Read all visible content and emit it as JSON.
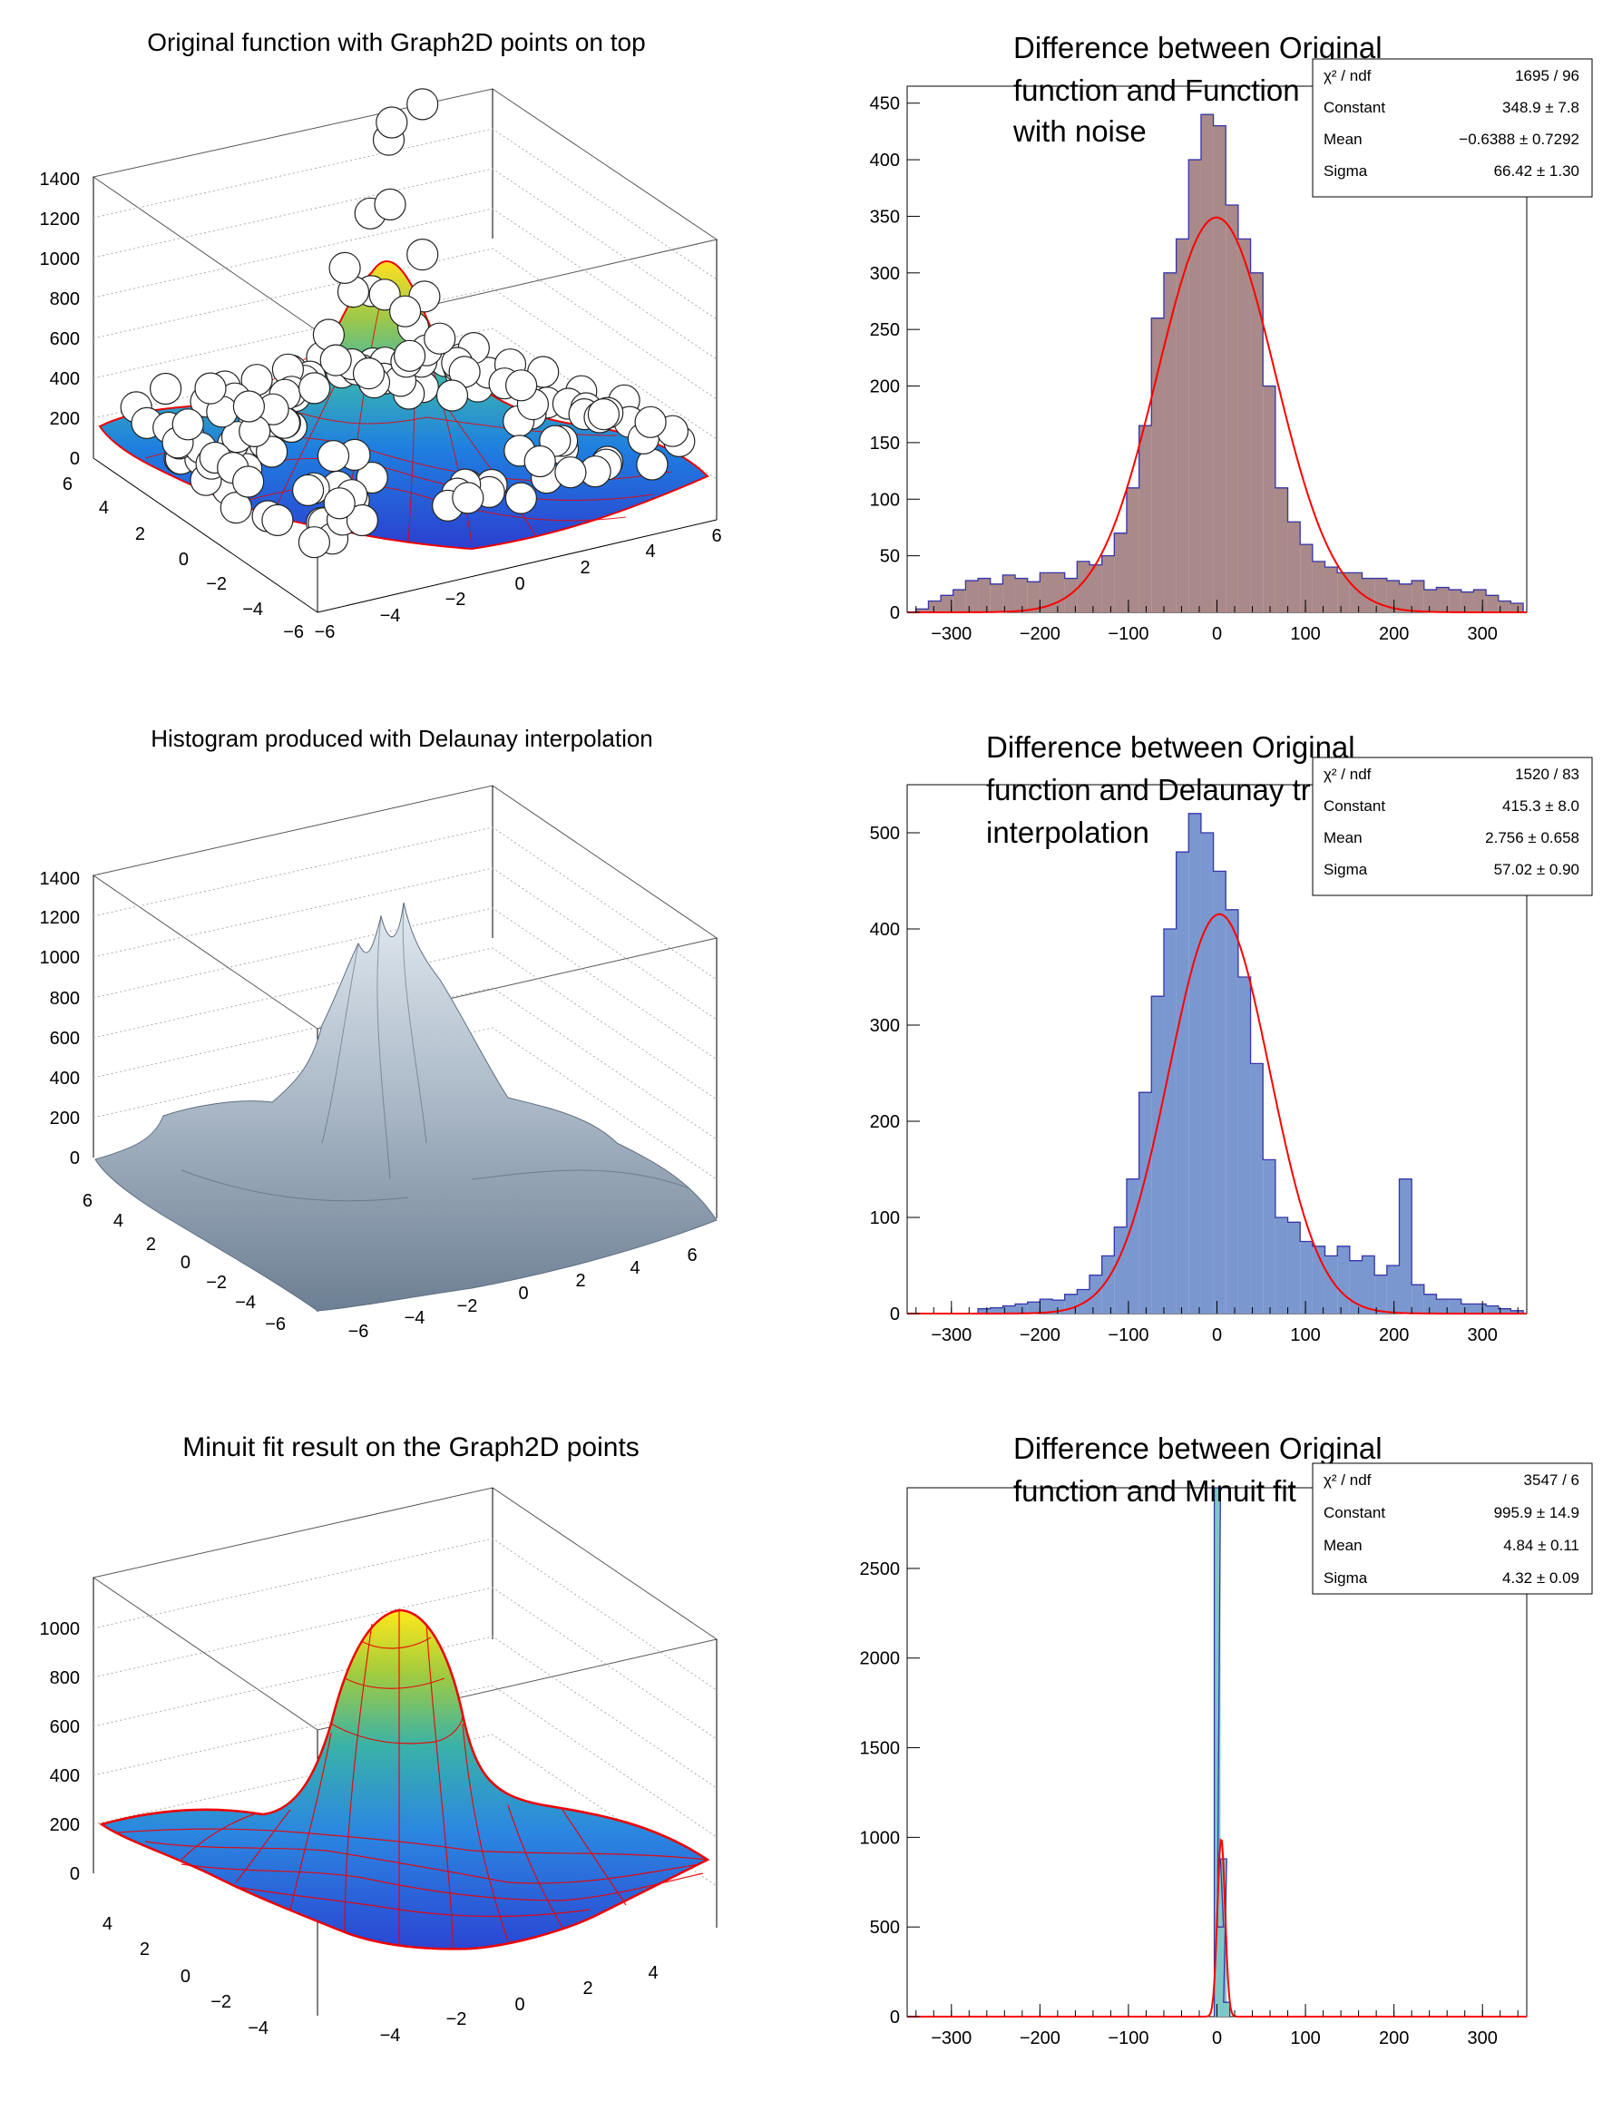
{
  "chart_data": [
    {
      "id": "p1",
      "type": "surface3d",
      "title": "Original function with Graph2D points on top",
      "zticks": [
        "0",
        "200",
        "400",
        "600",
        "800",
        "1000",
        "1200",
        "1400"
      ],
      "xticks": [
        "−6",
        "−4",
        "−2",
        "0",
        "2",
        "4",
        "6"
      ],
      "yticks": [
        "6",
        "4",
        "2",
        "0",
        "−2",
        "−4",
        "−6"
      ],
      "zlim": [
        0,
        1400
      ],
      "style": "colored surface with red mesh and white graph points",
      "n_points": 150
    },
    {
      "id": "p2",
      "type": "bar",
      "title": "Difference between Original function and Function with noise",
      "title_lines": [
        "Difference between Original",
        "function and Function",
        "with noise"
      ],
      "xlim": [
        -350,
        350
      ],
      "ylim": [
        0,
        465
      ],
      "xticks": [
        "−300",
        "−200",
        "−100",
        "0",
        "100",
        "200",
        "300"
      ],
      "xtick_values": [
        -300,
        -200,
        -100,
        0,
        100,
        200,
        300
      ],
      "yticks": [
        "0",
        "50",
        "100",
        "150",
        "200",
        "250",
        "300",
        "350",
        "400",
        "450"
      ],
      "ytick_values": [
        0,
        50,
        100,
        150,
        200,
        250,
        300,
        350,
        400,
        450
      ],
      "fill_color": "#a98989",
      "line_color": "#3535a8",
      "fit_color": "#ff0000",
      "fit": {
        "constant": 348.9,
        "mean": -0.6388,
        "sigma": 66.42
      },
      "stats": [
        {
          "label": "χ² / ndf",
          "value": "1695 / 96"
        },
        {
          "label": "Constant",
          "value": "348.9  ± 7.8"
        },
        {
          "label": "Mean",
          "value": "−0.6388  ± 0.7292"
        },
        {
          "label": "Sigma",
          "value": "66.42  ± 1.30"
        }
      ],
      "bin_width": 7,
      "bin_centers": [
        -333,
        -319,
        -305,
        -291,
        -277,
        -263,
        -249,
        -235,
        -221,
        -207,
        -193,
        -179,
        -165,
        -151,
        -137,
        -123,
        -109,
        -95,
        -81,
        -67,
        -53,
        -39,
        -25,
        -11,
        3,
        17,
        31,
        45,
        59,
        73,
        87,
        101,
        115,
        129,
        143,
        157,
        171,
        185,
        199,
        213,
        227,
        241,
        255,
        269,
        283,
        297,
        311,
        325,
        339
      ],
      "values": [
        3,
        10,
        15,
        20,
        28,
        30,
        25,
        33,
        30,
        27,
        35,
        35,
        30,
        45,
        42,
        50,
        70,
        110,
        165,
        260,
        300,
        330,
        400,
        440,
        430,
        360,
        330,
        300,
        200,
        110,
        80,
        60,
        45,
        40,
        35,
        35,
        30,
        30,
        28,
        25,
        28,
        20,
        22,
        20,
        18,
        20,
        15,
        10,
        8
      ]
    },
    {
      "id": "p3",
      "type": "surface3d",
      "title": "Histogram produced with Delaunay interpolation",
      "zticks": [
        "0",
        "200",
        "400",
        "600",
        "800",
        "1000",
        "1200",
        "1400"
      ],
      "xticks": [
        "−6",
        "−4",
        "−2",
        "0",
        "2",
        "4",
        "6"
      ],
      "yticks": [
        "6",
        "4",
        "2",
        "0",
        "−2",
        "−4",
        "−6"
      ],
      "zlim": [
        0,
        1400
      ],
      "style": "grey shaded surface"
    },
    {
      "id": "p4",
      "type": "bar",
      "title": "Difference between Original function and Delaunay triangles interpolation",
      "title_lines": [
        "Difference between Original",
        "function and Delaunay triangles",
        "interpolation"
      ],
      "xlim": [
        -350,
        350
      ],
      "ylim": [
        0,
        550
      ],
      "xticks": [
        "−300",
        "−200",
        "−100",
        "0",
        "100",
        "200",
        "300"
      ],
      "xtick_values": [
        -300,
        -200,
        -100,
        0,
        100,
        200,
        300
      ],
      "yticks": [
        "0",
        "100",
        "200",
        "300",
        "400",
        "500"
      ],
      "ytick_values": [
        0,
        100,
        200,
        300,
        400,
        500
      ],
      "fill_color": "#7b97cf",
      "line_color": "#3535a8",
      "fit_color": "#ff0000",
      "fit": {
        "constant": 415.3,
        "mean": 2.756,
        "sigma": 57.02
      },
      "stats": [
        {
          "label": "χ² / ndf",
          "value": "1520 / 83"
        },
        {
          "label": "Constant",
          "value": "415.3  ± 8.0"
        },
        {
          "label": "Mean",
          "value": "2.756  ± 0.658"
        },
        {
          "label": "Sigma",
          "value": "57.02  ± 0.90"
        }
      ],
      "bin_width": 7,
      "bin_centers": [
        -333,
        -319,
        -305,
        -291,
        -277,
        -263,
        -249,
        -235,
        -221,
        -207,
        -193,
        -179,
        -165,
        -151,
        -137,
        -123,
        -109,
        -95,
        -81,
        -67,
        -53,
        -39,
        -25,
        -11,
        3,
        17,
        31,
        45,
        59,
        73,
        87,
        101,
        115,
        129,
        143,
        157,
        171,
        185,
        199,
        213,
        227,
        241,
        255,
        269,
        283,
        297,
        311,
        325,
        339
      ],
      "values": [
        0,
        0,
        0,
        0,
        0,
        5,
        6,
        8,
        10,
        12,
        15,
        14,
        20,
        25,
        40,
        60,
        90,
        140,
        230,
        330,
        400,
        480,
        520,
        500,
        460,
        420,
        350,
        260,
        160,
        100,
        95,
        75,
        70,
        60,
        70,
        55,
        60,
        40,
        50,
        140,
        30,
        20,
        15,
        15,
        10,
        10,
        8,
        5,
        3
      ]
    },
    {
      "id": "p5",
      "type": "surface3d",
      "title": "Minuit fit result on the Graph2D points",
      "zticks": [
        "0",
        "200",
        "400",
        "600",
        "800",
        "1000"
      ],
      "xticks": [
        "−4",
        "−2",
        "0",
        "2",
        "4"
      ],
      "yticks": [
        "4",
        "2",
        "0",
        "−2",
        "−4"
      ],
      "zlim": [
        0,
        1150
      ],
      "style": "colored surface with red mesh"
    },
    {
      "id": "p6",
      "type": "bar",
      "title": "Difference between Original function and Minuit fit",
      "title_lines": [
        "Difference between Original",
        "function and Minuit fit"
      ],
      "xlim": [
        -350,
        350
      ],
      "ylim": [
        0,
        2950
      ],
      "xticks": [
        "−300",
        "−200",
        "−100",
        "0",
        "100",
        "200",
        "300"
      ],
      "xtick_values": [
        -300,
        -200,
        -100,
        0,
        100,
        200,
        300
      ],
      "yticks": [
        "0",
        "500",
        "1000",
        "1500",
        "2000",
        "2500"
      ],
      "ytick_values": [
        0,
        500,
        1000,
        1500,
        2000,
        2500
      ],
      "fill_color": "#7fc7c7",
      "line_color": "#3535a8",
      "fit_color": "#ff0000",
      "fit": {
        "constant": 995.9,
        "mean": 4.84,
        "sigma": 4.32
      },
      "stats": [
        {
          "label": "χ² / ndf",
          "value": "3547 / 6"
        },
        {
          "label": "Constant",
          "value": "995.9  ± 14.9"
        },
        {
          "label": "Mean",
          "value": "4.84  ± 0.11"
        },
        {
          "label": "Sigma",
          "value": "4.32  ± 0.09"
        }
      ],
      "bin_width": 3.5,
      "bin_centers": [
        0.5,
        4,
        7.5,
        11
      ],
      "values": [
        2950,
        500,
        880,
        80
      ]
    }
  ]
}
